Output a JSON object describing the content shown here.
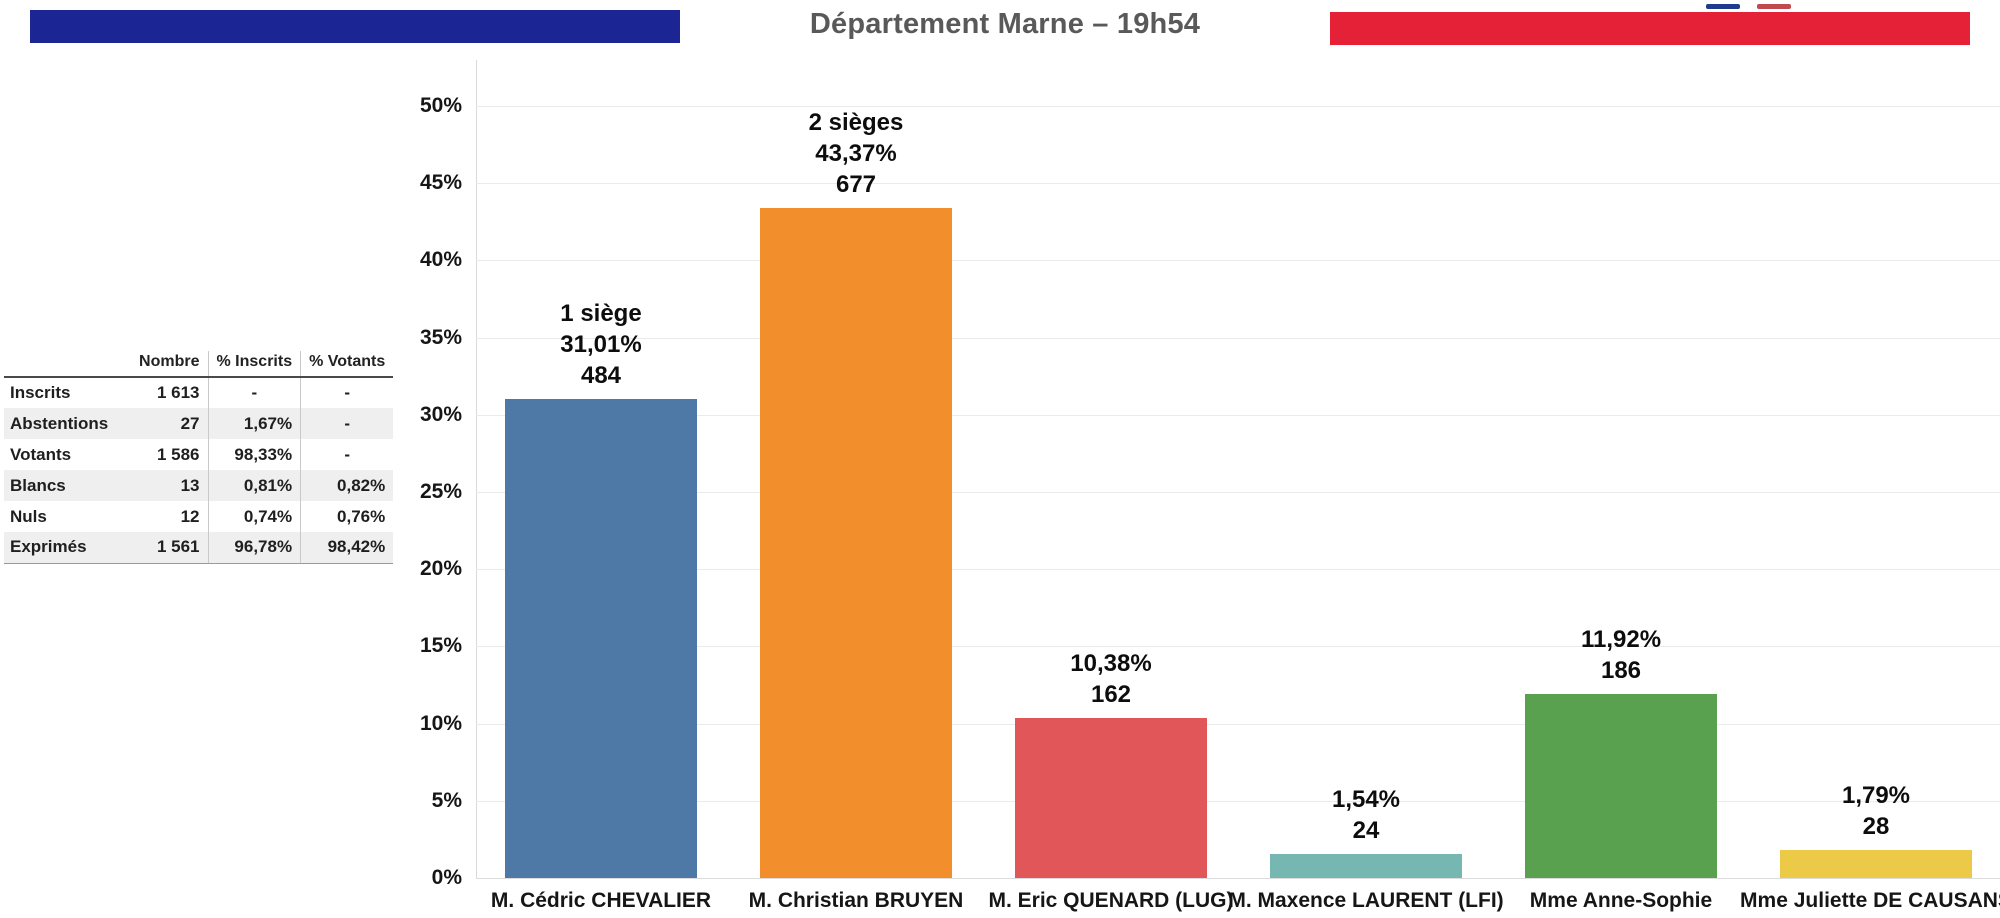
{
  "header": {
    "title": "Département Marne – 19h54",
    "left_band_color": "#1b2694",
    "right_band_color": "#e52138",
    "mini_marks": {
      "blue": "#1f3a8e",
      "red": "#c0484e"
    }
  },
  "results_table": {
    "columns": [
      "Nombre",
      "% Inscrits",
      "% Votants"
    ],
    "rows": [
      {
        "label": "Inscrits",
        "nombre": "1 613",
        "pct_inscrits": "-",
        "pct_votants": "-"
      },
      {
        "label": "Abstentions",
        "nombre": "27",
        "pct_inscrits": "1,67%",
        "pct_votants": "-"
      },
      {
        "label": "Votants",
        "nombre": "1 586",
        "pct_inscrits": "98,33%",
        "pct_votants": "-"
      },
      {
        "label": "Blancs",
        "nombre": "13",
        "pct_inscrits": "0,81%",
        "pct_votants": "0,82%"
      },
      {
        "label": "Nuls",
        "nombre": "12",
        "pct_inscrits": "0,74%",
        "pct_votants": "0,76%"
      },
      {
        "label": "Exprimés",
        "nombre": "1 561",
        "pct_inscrits": "96,78%",
        "pct_votants": "98,42%"
      }
    ]
  },
  "chart_data": {
    "type": "bar",
    "title": "Département Marne – 19h54",
    "categories": [
      "M. Cédric CHEVALIER",
      "M. Christian BRUYEN",
      "M. Eric QUENARD (LUG)",
      "M. Maxence LAURENT (LFI)",
      "Mme Anne-Sophie",
      "Mme Juliette DE CAUSANS"
    ],
    "values_pct": [
      31.01,
      43.37,
      10.38,
      1.54,
      11.92,
      1.79
    ],
    "value_labels": [
      "31,01%",
      "43,37%",
      "10,38%",
      "1,54%",
      "11,92%",
      "1,79%"
    ],
    "votes": [
      484,
      677,
      162,
      24,
      186,
      28
    ],
    "seat_labels": [
      "1 siège",
      "2 sièges",
      "",
      "",
      "",
      ""
    ],
    "bar_colors": [
      "#4e79a7",
      "#f28e2b",
      "#e15759",
      "#76b7b2",
      "#59a14f",
      "#edc948"
    ],
    "xlabel": "",
    "ylabel": "",
    "ylim": [
      0,
      50
    ],
    "ytick_labels": [
      "0%",
      "5%",
      "10%",
      "15%",
      "20%",
      "25%",
      "30%",
      "35%",
      "40%",
      "45%",
      "50%"
    ],
    "grid": true,
    "legend_position": "none"
  }
}
